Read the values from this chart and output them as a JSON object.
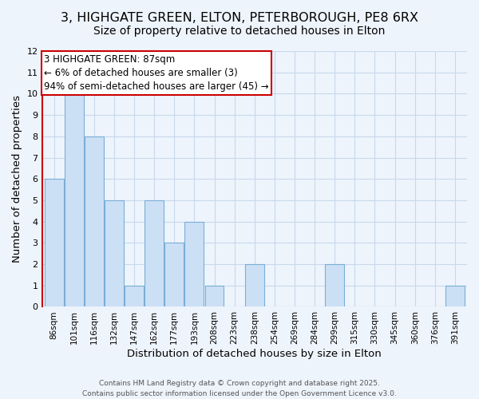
{
  "title": "3, HIGHGATE GREEN, ELTON, PETERBOROUGH, PE8 6RX",
  "subtitle": "Size of property relative to detached houses in Elton",
  "xlabel": "Distribution of detached houses by size in Elton",
  "ylabel": "Number of detached properties",
  "bin_labels": [
    "86sqm",
    "101sqm",
    "116sqm",
    "132sqm",
    "147sqm",
    "162sqm",
    "177sqm",
    "193sqm",
    "208sqm",
    "223sqm",
    "238sqm",
    "254sqm",
    "269sqm",
    "284sqm",
    "299sqm",
    "315sqm",
    "330sqm",
    "345sqm",
    "360sqm",
    "376sqm",
    "391sqm"
  ],
  "bar_heights": [
    6,
    10,
    8,
    5,
    1,
    5,
    3,
    4,
    1,
    0,
    2,
    0,
    0,
    0,
    2,
    0,
    0,
    0,
    0,
    0,
    1
  ],
  "bar_color": "#cce0f5",
  "bar_edge_color": "#7aaed6",
  "highlight_edge_color": "#cc0000",
  "annotation_text": "3 HIGHGATE GREEN: 87sqm\n← 6% of detached houses are smaller (3)\n94% of semi-detached houses are larger (45) →",
  "annotation_box_edge_color": "#cc0000",
  "annotation_box_face_color": "#ffffff",
  "ylim": [
    0,
    12
  ],
  "yticks": [
    0,
    1,
    2,
    3,
    4,
    5,
    6,
    7,
    8,
    9,
    10,
    11,
    12
  ],
  "grid_color": "#c8d8ec",
  "background_color": "#eef4fc",
  "footer": "Contains HM Land Registry data © Crown copyright and database right 2025.\nContains public sector information licensed under the Open Government Licence v3.0.",
  "title_fontsize": 11.5,
  "subtitle_fontsize": 10,
  "xlabel_fontsize": 9.5,
  "ylabel_fontsize": 9.5,
  "annotation_fontsize": 8.5,
  "footer_fontsize": 6.5
}
